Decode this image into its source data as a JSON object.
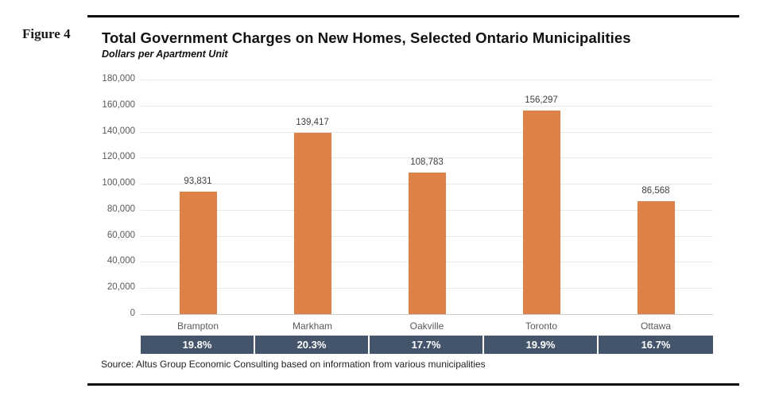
{
  "figure_label": "Figure 4",
  "source_note": "Source: Altus Group Economic Consulting based on information from various municipalities",
  "chart_data": {
    "type": "bar",
    "title": "Total Government Charges on New Homes, Selected Ontario Municipalities",
    "subtitle": "Dollars per Apartment Unit",
    "categories": [
      "Brampton",
      "Markham",
      "Oakville",
      "Toronto",
      "Ottawa"
    ],
    "values": [
      93831,
      139417,
      108783,
      156297,
      86568
    ],
    "value_labels": [
      "93,831",
      "139,417",
      "108,783",
      "156,297",
      "86,568"
    ],
    "percent_row": [
      "19.8%",
      "20.3%",
      "17.7%",
      "19.9%",
      "16.7%"
    ],
    "ylim": [
      0,
      180000
    ],
    "ytick_step": 20000,
    "ytick_labels": [
      "0",
      "20,000",
      "40,000",
      "60,000",
      "80,000",
      "100,000",
      "120,000",
      "140,000",
      "160,000",
      "180,000"
    ],
    "xlabel": "",
    "ylabel": "",
    "grid": true,
    "legend": "none",
    "bar_color": "#dc8246",
    "band_color": "#44546a",
    "grid_color": "#e7e7e7",
    "axis_line_color": "#c9c9c9",
    "tick_label_color": "#595959",
    "value_label_color": "#404040"
  }
}
